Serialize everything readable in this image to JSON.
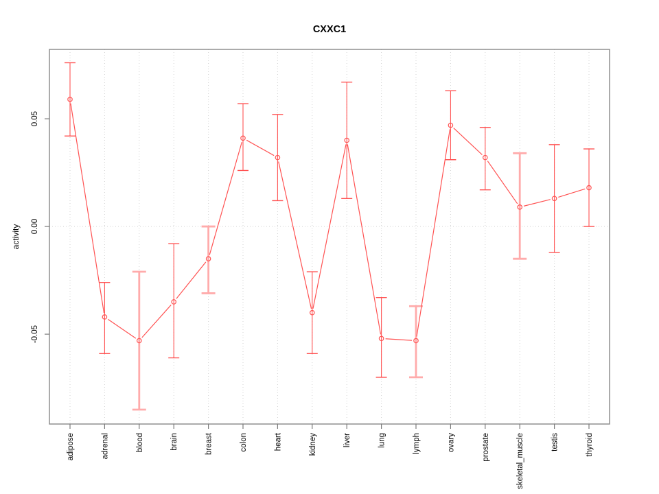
{
  "page": {
    "background": "#ffffff"
  },
  "chart_data": {
    "type": "line",
    "title": "CXXC1",
    "ylabel": "activity",
    "xlabel": "",
    "categories": [
      "adipose",
      "adrenal",
      "blood",
      "brain",
      "breast",
      "colon",
      "heart",
      "kidney",
      "liver",
      "lung",
      "lymph",
      "ovary",
      "prostate",
      "skeletal_muscle",
      "testis",
      "thyroid"
    ],
    "series": [
      {
        "name": "activity",
        "values": [
          0.059,
          -0.042,
          -0.053,
          -0.035,
          -0.015,
          0.041,
          0.032,
          -0.04,
          0.04,
          -0.052,
          -0.053,
          0.047,
          0.032,
          0.009,
          0.013,
          0.018
        ],
        "error_high": [
          0.076,
          -0.026,
          -0.021,
          -0.008,
          0.0,
          0.057,
          0.052,
          -0.021,
          0.067,
          -0.033,
          -0.037,
          0.063,
          0.046,
          0.034,
          0.038,
          0.036
        ],
        "error_low": [
          0.042,
          -0.059,
          -0.085,
          -0.061,
          -0.031,
          0.026,
          0.012,
          -0.059,
          0.013,
          -0.07,
          -0.07,
          0.031,
          0.017,
          -0.015,
          -0.012,
          0.0
        ]
      }
    ],
    "bar_weight": [
      "normal",
      "normal",
      "light",
      "normal",
      "light",
      "normal",
      "normal",
      "normal",
      "normal",
      "normal",
      "light",
      "normal",
      "normal",
      "light",
      "normal",
      "normal"
    ],
    "yticks": [
      {
        "value": 0.05,
        "label": "0.05"
      },
      {
        "value": 0.0,
        "label": "0.00"
      },
      {
        "value": -0.05,
        "label": "-0.05"
      }
    ],
    "ylim": [
      -0.0917,
      0.0822
    ],
    "grid": {
      "horizontal_at_zero": true,
      "vertical_per_category": true,
      "line_style": "dotted"
    },
    "legend_position": "none",
    "marker": "open-circle",
    "colors": {
      "series": "#ff5252",
      "series_light": "#ffabab",
      "grid": "#d2d2d2",
      "box": "#8f8f8f",
      "tick": "#7a7a7a",
      "text": "#000000"
    }
  }
}
